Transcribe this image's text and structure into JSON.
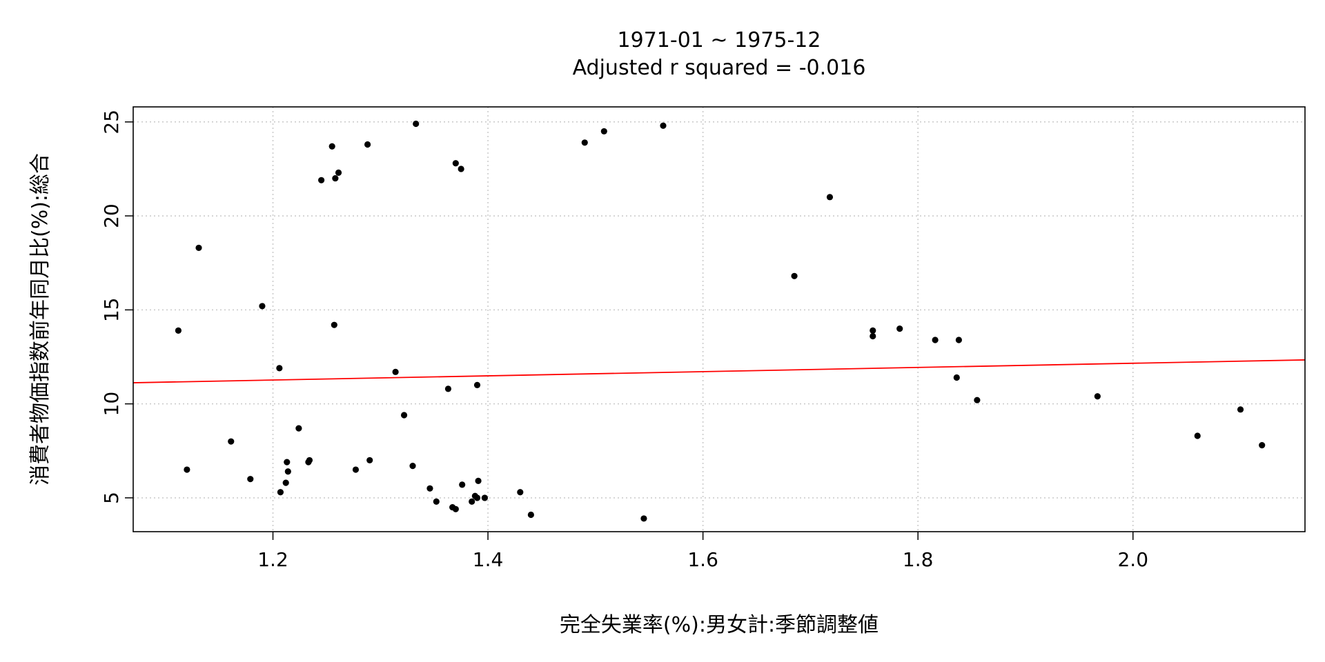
{
  "chart_data": {
    "type": "scatter",
    "title": "1971-01 ~ 1975-12",
    "subtitle": "Adjusted r squared = -0.016",
    "xlabel": "完全失業率(%):男女計:季節調整値",
    "ylabel": "消費者物価指数前年同月比(%):総合",
    "xlim": [
      1.07,
      2.16
    ],
    "ylim": [
      3.2,
      25.8
    ],
    "x_ticks": [
      1.2,
      1.4,
      1.6,
      1.8,
      2.0
    ],
    "x_tick_labels": [
      "1.2",
      "1.4",
      "1.6",
      "1.8",
      "2.0"
    ],
    "y_ticks": [
      5,
      10,
      15,
      20,
      25
    ],
    "y_tick_labels": [
      "5",
      "10",
      "15",
      "20",
      "25"
    ],
    "grid": true,
    "grid_style": "dotted",
    "point_color": "#000000",
    "regression_line": {
      "color": "#ff0000",
      "intercept": 9.93,
      "slope": 1.115
    },
    "points": [
      {
        "x": 1.112,
        "y": 13.9
      },
      {
        "x": 1.12,
        "y": 6.5
      },
      {
        "x": 1.131,
        "y": 18.3
      },
      {
        "x": 1.161,
        "y": 8.0
      },
      {
        "x": 1.179,
        "y": 6.0
      },
      {
        "x": 1.19,
        "y": 15.2
      },
      {
        "x": 1.206,
        "y": 11.9
      },
      {
        "x": 1.207,
        "y": 5.3
      },
      {
        "x": 1.212,
        "y": 5.8
      },
      {
        "x": 1.213,
        "y": 6.9
      },
      {
        "x": 1.214,
        "y": 6.4
      },
      {
        "x": 1.224,
        "y": 8.7
      },
      {
        "x": 1.233,
        "y": 6.9
      },
      {
        "x": 1.234,
        "y": 7.0
      },
      {
        "x": 1.245,
        "y": 21.9
      },
      {
        "x": 1.255,
        "y": 23.7
      },
      {
        "x": 1.257,
        "y": 14.2
      },
      {
        "x": 1.258,
        "y": 22.0
      },
      {
        "x": 1.261,
        "y": 22.3
      },
      {
        "x": 1.277,
        "y": 6.5
      },
      {
        "x": 1.288,
        "y": 23.8
      },
      {
        "x": 1.29,
        "y": 7.0
      },
      {
        "x": 1.314,
        "y": 11.7
      },
      {
        "x": 1.322,
        "y": 9.4
      },
      {
        "x": 1.33,
        "y": 6.7
      },
      {
        "x": 1.333,
        "y": 24.9
      },
      {
        "x": 1.346,
        "y": 5.5
      },
      {
        "x": 1.352,
        "y": 4.8
      },
      {
        "x": 1.363,
        "y": 10.8
      },
      {
        "x": 1.367,
        "y": 4.5
      },
      {
        "x": 1.37,
        "y": 4.4
      },
      {
        "x": 1.37,
        "y": 22.8
      },
      {
        "x": 1.375,
        "y": 22.5
      },
      {
        "x": 1.376,
        "y": 5.7
      },
      {
        "x": 1.385,
        "y": 4.8
      },
      {
        "x": 1.388,
        "y": 5.1
      },
      {
        "x": 1.39,
        "y": 11.0
      },
      {
        "x": 1.391,
        "y": 5.9
      },
      {
        "x": 1.39,
        "y": 5.0
      },
      {
        "x": 1.397,
        "y": 5.0
      },
      {
        "x": 1.43,
        "y": 5.3
      },
      {
        "x": 1.44,
        "y": 4.1
      },
      {
        "x": 1.49,
        "y": 23.9
      },
      {
        "x": 1.508,
        "y": 24.5
      },
      {
        "x": 1.545,
        "y": 3.9
      },
      {
        "x": 1.563,
        "y": 24.8
      },
      {
        "x": 1.685,
        "y": 16.8
      },
      {
        "x": 1.718,
        "y": 21.0
      },
      {
        "x": 1.758,
        "y": 13.9
      },
      {
        "x": 1.758,
        "y": 13.6
      },
      {
        "x": 1.783,
        "y": 14.0
      },
      {
        "x": 1.816,
        "y": 13.4
      },
      {
        "x": 1.836,
        "y": 11.4
      },
      {
        "x": 1.838,
        "y": 13.4
      },
      {
        "x": 1.855,
        "y": 10.2
      },
      {
        "x": 1.967,
        "y": 10.4
      },
      {
        "x": 2.06,
        "y": 8.3
      },
      {
        "x": 2.1,
        "y": 9.7
      },
      {
        "x": 2.12,
        "y": 7.8
      }
    ]
  }
}
